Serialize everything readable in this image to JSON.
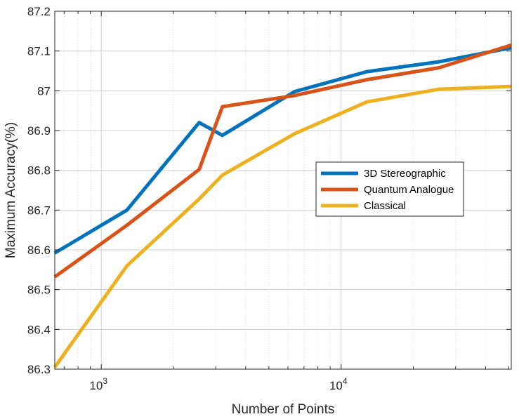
{
  "chart_data": {
    "type": "line",
    "xlabel": "Number of Points",
    "ylabel": "Maximum Accuracy(%)",
    "xscale": "log",
    "xlim": [
      640,
      51200
    ],
    "ylim": [
      86.3,
      87.2
    ],
    "yticks": [
      86.3,
      86.4,
      86.5,
      86.6,
      86.7,
      86.8,
      86.9,
      87,
      87.1,
      87.2
    ],
    "ytick_labels": [
      "86.3",
      "86.4",
      "86.5",
      "86.6",
      "86.7",
      "86.8",
      "86.9",
      "87",
      "87.1",
      "87.2"
    ],
    "xticks": [
      {
        "value": 1000,
        "base": "10",
        "exp": "3"
      },
      {
        "value": 10000,
        "base": "10",
        "exp": "4"
      }
    ],
    "grid": true,
    "minor_grid": true,
    "legend_position": "center-right",
    "series": [
      {
        "name": "3D Stereographic",
        "color": "#0072BD",
        "x": [
          640,
          1280,
          2560,
          3200,
          6400,
          12800,
          25600,
          51200
        ],
        "y": [
          86.592,
          86.7,
          86.92,
          86.888,
          86.998,
          87.048,
          87.073,
          87.108
        ]
      },
      {
        "name": "Quantum Analogue",
        "color": "#D95319",
        "x": [
          640,
          1280,
          2560,
          3200,
          6400,
          12800,
          25600,
          51200
        ],
        "y": [
          86.532,
          86.662,
          86.802,
          86.96,
          86.988,
          87.028,
          87.058,
          87.115
        ]
      },
      {
        "name": "Classical",
        "color": "#EDB120",
        "x": [
          640,
          1280,
          2560,
          3200,
          6400,
          12800,
          25600,
          51200
        ],
        "y": [
          86.305,
          86.56,
          86.728,
          86.788,
          86.892,
          86.972,
          87.004,
          87.011
        ]
      }
    ]
  }
}
